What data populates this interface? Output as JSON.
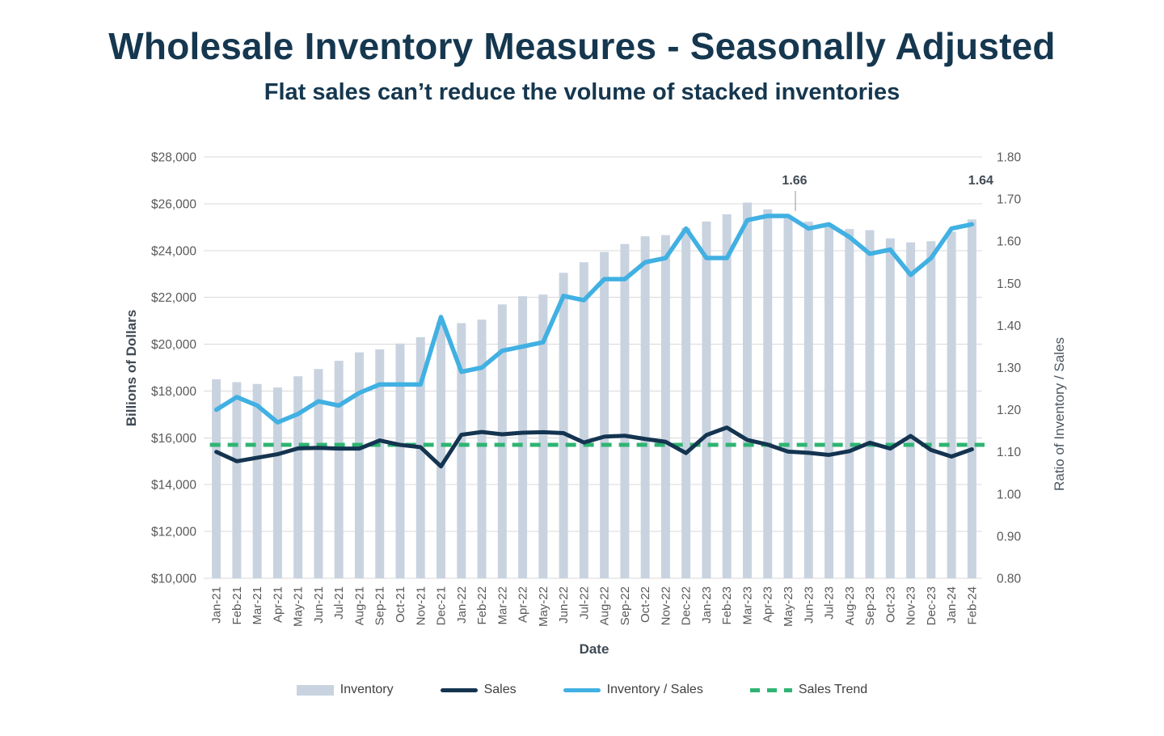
{
  "header": {
    "title": "Wholesale Inventory Measures - Seasonally Adjusted",
    "subtitle": "Flat sales can’t reduce the volume of stacked inventories"
  },
  "chart_data": {
    "type": "combo-bar-line",
    "categories": [
      "Jan-21",
      "Feb-21",
      "Mar-21",
      "Apr-21",
      "May-21",
      "Jun-21",
      "Jul-21",
      "Aug-21",
      "Sep-21",
      "Oct-21",
      "Nov-21",
      "Dec-21",
      "Jan-22",
      "Feb-22",
      "Mar-22",
      "Apr-22",
      "May-22",
      "Jun-22",
      "Jul-22",
      "Aug-22",
      "Sep-22",
      "Oct-22",
      "Nov-22",
      "Dec-22",
      "Jan-23",
      "Feb-23",
      "Mar-23",
      "Apr-23",
      "May-23",
      "Jun-23",
      "Jul-23",
      "Aug-23",
      "Sep-23",
      "Oct-23",
      "Nov-23",
      "Dec-23",
      "Jan-24",
      "Feb-24"
    ],
    "series": [
      {
        "name": "Inventory",
        "type": "bar",
        "axis": "left",
        "color": "#c9d3e0",
        "values": [
          18500,
          18380,
          18300,
          18150,
          18630,
          18940,
          19290,
          19650,
          19780,
          20030,
          20300,
          20950,
          20900,
          21050,
          21700,
          22050,
          22120,
          23050,
          23500,
          23940,
          24280,
          24610,
          24660,
          24970,
          25240,
          25550,
          26050,
          25760,
          25500,
          25230,
          25130,
          24920,
          24870,
          24520,
          24350,
          24400,
          24810,
          25330
        ]
      },
      {
        "name": "Sales",
        "type": "line",
        "axis": "left",
        "color": "#143450",
        "values": [
          15400,
          15000,
          15150,
          15300,
          15550,
          15570,
          15540,
          15540,
          15890,
          15700,
          15600,
          14780,
          16130,
          16250,
          16150,
          16220,
          16240,
          16200,
          15800,
          16050,
          16090,
          15950,
          15830,
          15350,
          16120,
          16440,
          15910,
          15710,
          15410,
          15360,
          15270,
          15430,
          15790,
          15540,
          16080,
          15480,
          15200,
          15510
        ]
      },
      {
        "name": "Inventory / Sales",
        "type": "line",
        "axis": "right",
        "color": "#41b0e2",
        "values": [
          1.2,
          1.23,
          1.21,
          1.17,
          1.19,
          1.22,
          1.21,
          1.24,
          1.26,
          1.26,
          1.26,
          1.42,
          1.29,
          1.3,
          1.34,
          1.35,
          1.36,
          1.47,
          1.46,
          1.51,
          1.51,
          1.55,
          1.56,
          1.63,
          1.56,
          1.56,
          1.65,
          1.66,
          1.66,
          1.63,
          1.64,
          1.61,
          1.57,
          1.58,
          1.52,
          1.56,
          1.63,
          1.64
        ]
      },
      {
        "name": "Sales Trend",
        "type": "line-dashed",
        "axis": "left",
        "color": "#2fb473",
        "constant_value": 15700
      }
    ],
    "left_axis": {
      "title": "Billions of Dollars",
      "min": 10000,
      "max": 28000,
      "step": 2000,
      "prefix": "$"
    },
    "right_axis": {
      "title": "Ratio of Inventory / Sales",
      "min": 0.8,
      "max": 1.8,
      "step": 0.1
    },
    "x_axis": {
      "title": "Date"
    },
    "annotations": [
      {
        "text": "1.66",
        "category": "May-23",
        "series": "Inventory / Sales",
        "leader": true
      },
      {
        "text": "1.64",
        "category": "Feb-24",
        "series": "Inventory / Sales",
        "leader": false
      }
    ],
    "grid": true,
    "legend_position": "bottom",
    "gridline_color": "#d9d9d9",
    "tick_label_color": "#595959",
    "annotation_color": "#414b55"
  }
}
